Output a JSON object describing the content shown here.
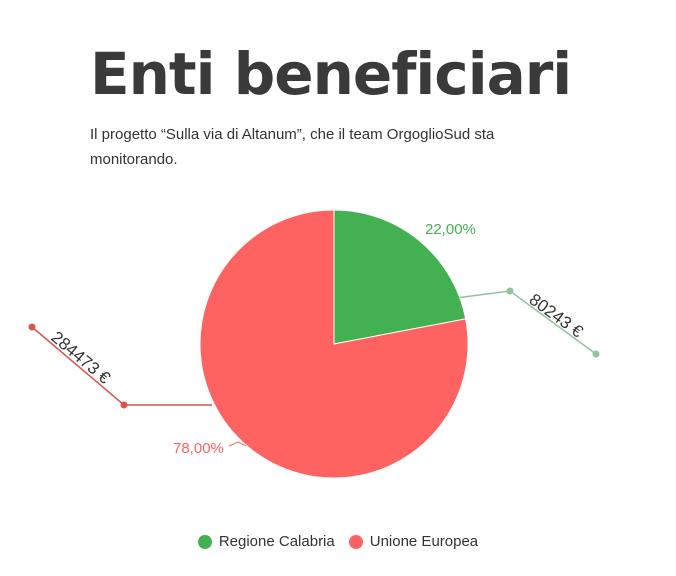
{
  "header": {
    "title": "Enti beneficiari",
    "subtitle": "Il progetto “Sulla via di Altanum”, che il team OrgoglioSud sta monitorando."
  },
  "chart_data": {
    "type": "pie",
    "title": "Enti beneficiari",
    "legend_position": "bottom",
    "series": [
      {
        "name": "Regione Calabria",
        "value": 80243,
        "value_label": "80243 €",
        "percent_label": "22,00%",
        "color": "#43b051",
        "leader_color": "#94c39b"
      },
      {
        "name": "Unione Europea",
        "value": 284473,
        "value_label": "284473 €",
        "percent_label": "78,00%",
        "color": "#ff6361",
        "leader_color": "#d9534f"
      }
    ]
  }
}
